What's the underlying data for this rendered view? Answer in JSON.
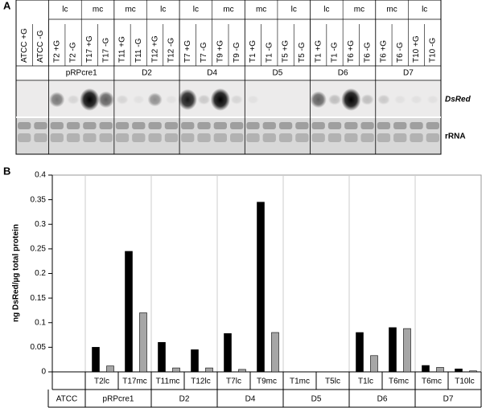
{
  "panel_a": {
    "label": "A",
    "lane_labels": [
      "ATCC +G",
      "ATCC -G",
      "T2 +G",
      "T2 -G",
      "T17 +G",
      "T17 -G",
      "T11 +G",
      "T11 -G",
      "T12 +G",
      "T12 -G",
      "T7 +G",
      "T7 -G",
      "T9 +G",
      "T9 -G",
      "T1 +G",
      "T1 -G",
      "T5 +G",
      "T5 -G",
      "T1 +G",
      "T1 -G",
      "T6 +G",
      "T6 -G",
      "T6 +G",
      "T6 -G",
      "T10 +G",
      "T10 -G"
    ],
    "condition_labels": [
      "lc",
      "mc",
      "mc",
      "lc",
      "lc",
      "mc",
      "mc",
      "lc",
      "lc",
      "mc",
      "mc",
      "lc"
    ],
    "construct_labels": [
      "pRPcre1",
      "D2",
      "D4",
      "D5",
      "D6",
      "D7"
    ],
    "row_labels": [
      "DsRed",
      "rRNA"
    ]
  },
  "chart_data": {
    "type": "bar",
    "panel_label": "B",
    "ylabel": "ng DsRed/µg total protein",
    "categories": [
      null,
      "T2lc",
      "T17mc",
      "T11mc",
      "T12lc",
      "T7lc",
      "T9mc",
      "T1mc",
      "T5lc",
      "T1lc",
      "T6mc",
      "T6mc",
      "T10lc"
    ],
    "group_labels": [
      "ATCC",
      "pRPcre1",
      "D2",
      "D4",
      "D5",
      "D6",
      "D7"
    ],
    "series": [
      {
        "color": "#000000",
        "values": [
          null,
          0.05,
          0.245,
          0.06,
          0.045,
          0.078,
          0.345,
          0,
          0,
          0.08,
          0.09,
          0.013,
          0.006
        ]
      },
      {
        "color": "#a6a6a6",
        "values": [
          null,
          0.012,
          0.12,
          0.008,
          0.008,
          0.005,
          0.08,
          0,
          0,
          0.033,
          0.088,
          0.009,
          0.002
        ]
      }
    ],
    "ylim": [
      0,
      0.4
    ],
    "yticks": [
      0,
      0.05,
      0.1,
      0.15,
      0.2,
      0.25,
      0.3,
      0.35,
      0.4
    ],
    "grid": false
  }
}
